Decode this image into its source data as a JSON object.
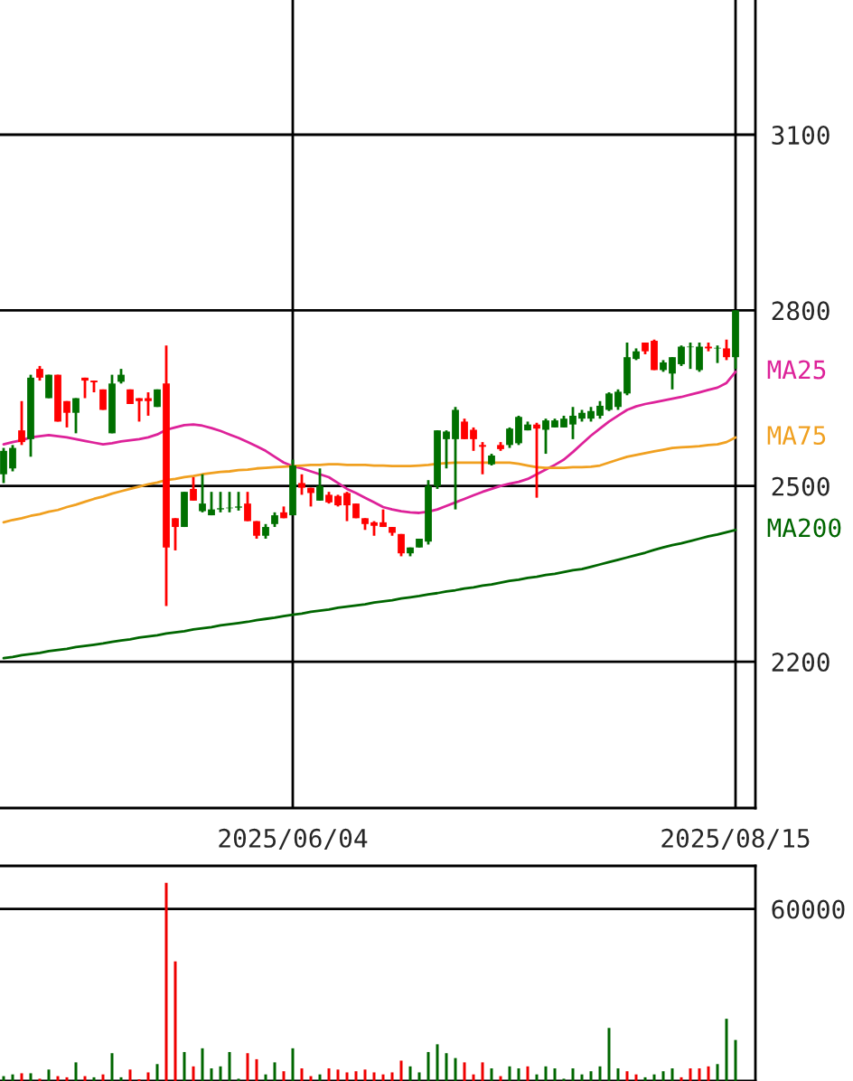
{
  "chart_data": [
    {
      "type": "candlestick",
      "categories": [
        null,
        null,
        null,
        null,
        null,
        null,
        null,
        null,
        null,
        null,
        null,
        null,
        null,
        null,
        null,
        null,
        null,
        null,
        null,
        null,
        null,
        null,
        null,
        null,
        null,
        null,
        null,
        null,
        null,
        null,
        null,
        null,
        "2025/06/04",
        null,
        null,
        null,
        null,
        null,
        null,
        null,
        null,
        null,
        null,
        null,
        null,
        null,
        null,
        null,
        null,
        null,
        null,
        null,
        null,
        null,
        null,
        null,
        null,
        null,
        null,
        null,
        null,
        null,
        null,
        null,
        null,
        null,
        null,
        null,
        null,
        null,
        null,
        null,
        null,
        null,
        null,
        null,
        null,
        null,
        null,
        null,
        null,
        "2025/08/15"
      ],
      "ohlc": [
        [
          2520,
          2565,
          2505,
          2560
        ],
        [
          2530,
          2570,
          2525,
          2565
        ],
        [
          2595,
          2645,
          2570,
          2575
        ],
        [
          2580,
          2690,
          2550,
          2685
        ],
        [
          2700,
          2705,
          2680,
          2685
        ],
        [
          2650,
          2690,
          2650,
          2690
        ],
        [
          2690,
          2690,
          2610,
          2610
        ],
        [
          2645,
          2645,
          2600,
          2625
        ],
        [
          2625,
          2650,
          2590,
          2650
        ],
        [
          2685,
          2685,
          2650,
          2680
        ],
        [
          2680,
          2680,
          2660,
          2677
        ],
        [
          2665,
          2665,
          2630,
          2630
        ],
        [
          2590,
          2690,
          2590,
          2675
        ],
        [
          2678,
          2700,
          2675,
          2690
        ],
        [
          2665,
          2665,
          2640,
          2640
        ],
        [
          2650,
          2650,
          2610,
          2645
        ],
        [
          2650,
          2660,
          2620,
          2645
        ],
        [
          2635,
          2665,
          2635,
          2665
        ],
        [
          2675,
          2740,
          2295,
          2395
        ],
        [
          2445,
          2445,
          2390,
          2430
        ],
        [
          2430,
          2490,
          2430,
          2490
        ],
        [
          2495,
          2515,
          2475,
          2475
        ],
        [
          2457,
          2520,
          2455,
          2470
        ],
        [
          2450,
          2490,
          2450,
          2460
        ],
        [
          2460,
          2490,
          2455,
          2462
        ],
        [
          2462,
          2490,
          2455,
          2463
        ],
        [
          2463,
          2490,
          2458,
          2465
        ],
        [
          2470,
          2490,
          2440,
          2440
        ],
        [
          2440,
          2440,
          2410,
          2415
        ],
        [
          2415,
          2435,
          2410,
          2430
        ],
        [
          2435,
          2455,
          2430,
          2450
        ],
        [
          2455,
          2465,
          2445,
          2445
        ],
        [
          2450,
          2545,
          2450,
          2535
        ],
        [
          2505,
          2520,
          2485,
          2497
        ],
        [
          2497,
          2497,
          2465,
          2488
        ],
        [
          2475,
          2530,
          2475,
          2500
        ],
        [
          2485,
          2490,
          2470,
          2472
        ],
        [
          2483,
          2485,
          2465,
          2467
        ],
        [
          2488,
          2490,
          2440,
          2467
        ],
        [
          2470,
          2470,
          2445,
          2445
        ],
        [
          2445,
          2445,
          2425,
          2435
        ],
        [
          2438,
          2440,
          2415,
          2432
        ],
        [
          2438,
          2460,
          2430,
          2430
        ],
        [
          2430,
          2430,
          2415,
          2420
        ],
        [
          2418,
          2418,
          2380,
          2385
        ],
        [
          2385,
          2395,
          2380,
          2395
        ],
        [
          2395,
          2410,
          2395,
          2410
        ],
        [
          2405,
          2510,
          2400,
          2500
        ],
        [
          2500,
          2595,
          2495,
          2595
        ],
        [
          2580,
          2595,
          2530,
          2593
        ],
        [
          2580,
          2635,
          2460,
          2630
        ],
        [
          2610,
          2615,
          2580,
          2580
        ],
        [
          2596,
          2600,
          2560,
          2580
        ],
        [
          2570,
          2575,
          2520,
          2567
        ],
        [
          2537,
          2555,
          2535,
          2552
        ],
        [
          2570,
          2575,
          2560,
          2563
        ],
        [
          2570,
          2600,
          2565,
          2598
        ],
        [
          2573,
          2620,
          2570,
          2618
        ],
        [
          2595,
          2610,
          2595,
          2605
        ],
        [
          2605,
          2608,
          2480,
          2598
        ],
        [
          2596,
          2615,
          2555,
          2612
        ],
        [
          2600,
          2615,
          2600,
          2612
        ],
        [
          2600,
          2620,
          2600,
          2615
        ],
        [
          2605,
          2635,
          2580,
          2620
        ],
        [
          2615,
          2630,
          2610,
          2625
        ],
        [
          2615,
          2635,
          2610,
          2628
        ],
        [
          2620,
          2645,
          2615,
          2637
        ],
        [
          2630,
          2660,
          2628,
          2658
        ],
        [
          2635,
          2665,
          2630,
          2661
        ],
        [
          2658,
          2745,
          2655,
          2720
        ],
        [
          2717,
          2735,
          2715,
          2730
        ],
        [
          2745,
          2745,
          2725,
          2730
        ],
        [
          2748,
          2750,
          2698,
          2698
        ],
        [
          2698,
          2715,
          2695,
          2711
        ],
        [
          2692,
          2720,
          2665,
          2720
        ],
        [
          2708,
          2740,
          2705,
          2738
        ],
        [
          2737,
          2745,
          2700,
          2738
        ],
        [
          2698,
          2745,
          2695,
          2738
        ],
        [
          2738,
          2745,
          2730,
          2735
        ],
        [
          2735,
          2740,
          2710,
          2736
        ],
        [
          2735,
          2750,
          2715,
          2720
        ],
        [
          2720,
          2800,
          2700,
          2800
        ]
      ],
      "series": [
        {
          "type": "line",
          "name": "MA25",
          "color": "#dd2299",
          "values": [
            2571,
            2575,
            2578,
            2583,
            2585,
            2587,
            2585,
            2583,
            2580,
            2577,
            2574,
            2571,
            2573,
            2576,
            2578,
            2580,
            2583,
            2588,
            2596,
            2600,
            2604,
            2605,
            2603,
            2599,
            2594,
            2588,
            2582,
            2575,
            2568,
            2560,
            2550,
            2540,
            2534,
            2530,
            2525,
            2520,
            2515,
            2505,
            2495,
            2488,
            2480,
            2472,
            2464,
            2460,
            2457,
            2455,
            2454,
            2456,
            2460,
            2466,
            2472,
            2478,
            2484,
            2490,
            2495,
            2500,
            2504,
            2507,
            2512,
            2520,
            2528,
            2536,
            2545,
            2558,
            2572,
            2586,
            2598,
            2610,
            2620,
            2630,
            2636,
            2640,
            2643,
            2646,
            2649,
            2652,
            2656,
            2660,
            2664,
            2668,
            2676,
            2695
          ]
        },
        {
          "type": "line",
          "name": "MA75",
          "color": "#f0a020",
          "values": [
            2438,
            2442,
            2445,
            2449,
            2452,
            2456,
            2459,
            2464,
            2468,
            2473,
            2478,
            2482,
            2487,
            2491,
            2495,
            2499,
            2503,
            2506,
            2510,
            2512,
            2515,
            2517,
            2520,
            2522,
            2524,
            2525,
            2527,
            2528,
            2530,
            2531,
            2532,
            2533,
            2534,
            2535,
            2536,
            2536,
            2537,
            2537,
            2536,
            2536,
            2536,
            2535,
            2535,
            2534,
            2534,
            2534,
            2535,
            2536,
            2538,
            2539,
            2540,
            2540,
            2540,
            2540,
            2540,
            2540,
            2540,
            2538,
            2535,
            2532,
            2531,
            2531,
            2531,
            2532,
            2532,
            2533,
            2535,
            2540,
            2545,
            2550,
            2553,
            2556,
            2559,
            2562,
            2565,
            2566,
            2567,
            2568,
            2570,
            2571,
            2575,
            2583
          ]
        },
        {
          "type": "line",
          "name": "MA200",
          "color": "#006600",
          "values": [
            2206,
            2208,
            2211,
            2213,
            2215,
            2218,
            2220,
            2222,
            2225,
            2227,
            2229,
            2231,
            2234,
            2236,
            2238,
            2241,
            2243,
            2245,
            2248,
            2250,
            2252,
            2255,
            2257,
            2259,
            2262,
            2264,
            2266,
            2268,
            2271,
            2273,
            2275,
            2278,
            2280,
            2282,
            2285,
            2287,
            2289,
            2292,
            2294,
            2296,
            2298,
            2301,
            2303,
            2305,
            2308,
            2310,
            2312,
            2315,
            2317,
            2320,
            2322,
            2325,
            2327,
            2330,
            2332,
            2335,
            2338,
            2340,
            2343,
            2345,
            2348,
            2350,
            2353,
            2356,
            2358,
            2362,
            2366,
            2370,
            2374,
            2378,
            2382,
            2386,
            2391,
            2395,
            2399,
            2402,
            2406,
            2410,
            2414,
            2417,
            2421,
            2425
          ]
        }
      ],
      "ylim": [
        1950,
        3330
      ],
      "yticks": [
        2200,
        2500,
        2800,
        3100
      ],
      "grid": true
    },
    {
      "type": "bar",
      "categories": [
        null,
        null,
        null,
        null,
        null,
        null,
        null,
        null,
        null,
        null,
        null,
        null,
        null,
        null,
        null,
        null,
        null,
        null,
        null,
        null,
        null,
        null,
        null,
        null,
        null,
        null,
        null,
        null,
        null,
        null,
        null,
        null,
        null,
        null,
        null,
        null,
        null,
        null,
        null,
        null,
        null,
        null,
        null,
        null,
        null,
        null,
        null,
        null,
        null,
        null,
        null,
        null,
        null,
        null,
        null,
        null,
        null,
        null,
        null,
        null,
        null,
        null,
        null,
        null,
        null,
        null,
        null,
        null,
        null,
        null,
        null,
        null,
        null,
        null,
        null,
        null,
        null,
        null,
        null,
        null,
        null,
        null
      ],
      "values": [
        1700,
        2300,
        2700,
        2700,
        800,
        4000,
        1700,
        1300,
        6500,
        1700,
        1300,
        2300,
        9700,
        1300,
        4000,
        600,
        3000,
        5900,
        69100,
        41700,
        10100,
        5100,
        11400,
        4400,
        5100,
        10100,
        800,
        9700,
        7600,
        2300,
        6500,
        3400,
        11400,
        4400,
        1700,
        2300,
        4400,
        4000,
        3000,
        3400,
        4000,
        3000,
        2300,
        3000,
        7100,
        5100,
        3000,
        10100,
        12800,
        9700,
        8000,
        6500,
        2300,
        6500,
        4400,
        1700,
        5100,
        4400,
        5100,
        2300,
        5100,
        4400,
        800,
        4400,
        2300,
        3400,
        5100,
        18500,
        4400,
        3400,
        2300,
        1300,
        2300,
        3400,
        4400,
        1300,
        4400,
        4400,
        5100,
        5900,
        21700,
        14300
      ],
      "colors": [
        "#006600",
        "#006600",
        "#ee0000",
        "#006600",
        "#ee0000",
        "#006600",
        "#ee0000",
        "#ee0000",
        "#006600",
        "#ee0000",
        "#006600",
        "#ee0000",
        "#006600",
        "#006600",
        "#ee0000",
        "#ee0000",
        "#ee0000",
        "#006600",
        "#ee0000",
        "#ee0000",
        "#006600",
        "#ee0000",
        "#006600",
        "#006600",
        "#006600",
        "#006600",
        "#006600",
        "#ee0000",
        "#ee0000",
        "#006600",
        "#006600",
        "#ee0000",
        "#006600",
        "#ee0000",
        "#ee0000",
        "#006600",
        "#ee0000",
        "#ee0000",
        "#ee0000",
        "#ee0000",
        "#ee0000",
        "#ee0000",
        "#ee0000",
        "#ee0000",
        "#ee0000",
        "#006600",
        "#006600",
        "#006600",
        "#006600",
        "#006600",
        "#006600",
        "#ee0000",
        "#ee0000",
        "#ee0000",
        "#006600",
        "#ee0000",
        "#006600",
        "#006600",
        "#ee0000",
        "#006600",
        "#006600",
        "#006600",
        "#006600",
        "#006600",
        "#006600",
        "#006600",
        "#006600",
        "#006600",
        "#006600",
        "#ee0000",
        "#ee0000",
        "#006600",
        "#006600",
        "#006600",
        "#006600",
        "#ee0000",
        "#ee0000",
        "#ee0000",
        "#ee0000",
        "#006600",
        "#006600",
        "#006600"
      ],
      "ylim": [
        0,
        75000
      ],
      "yticks": [
        60000
      ],
      "grid": "y",
      "tick_labels": "y"
    }
  ]
}
